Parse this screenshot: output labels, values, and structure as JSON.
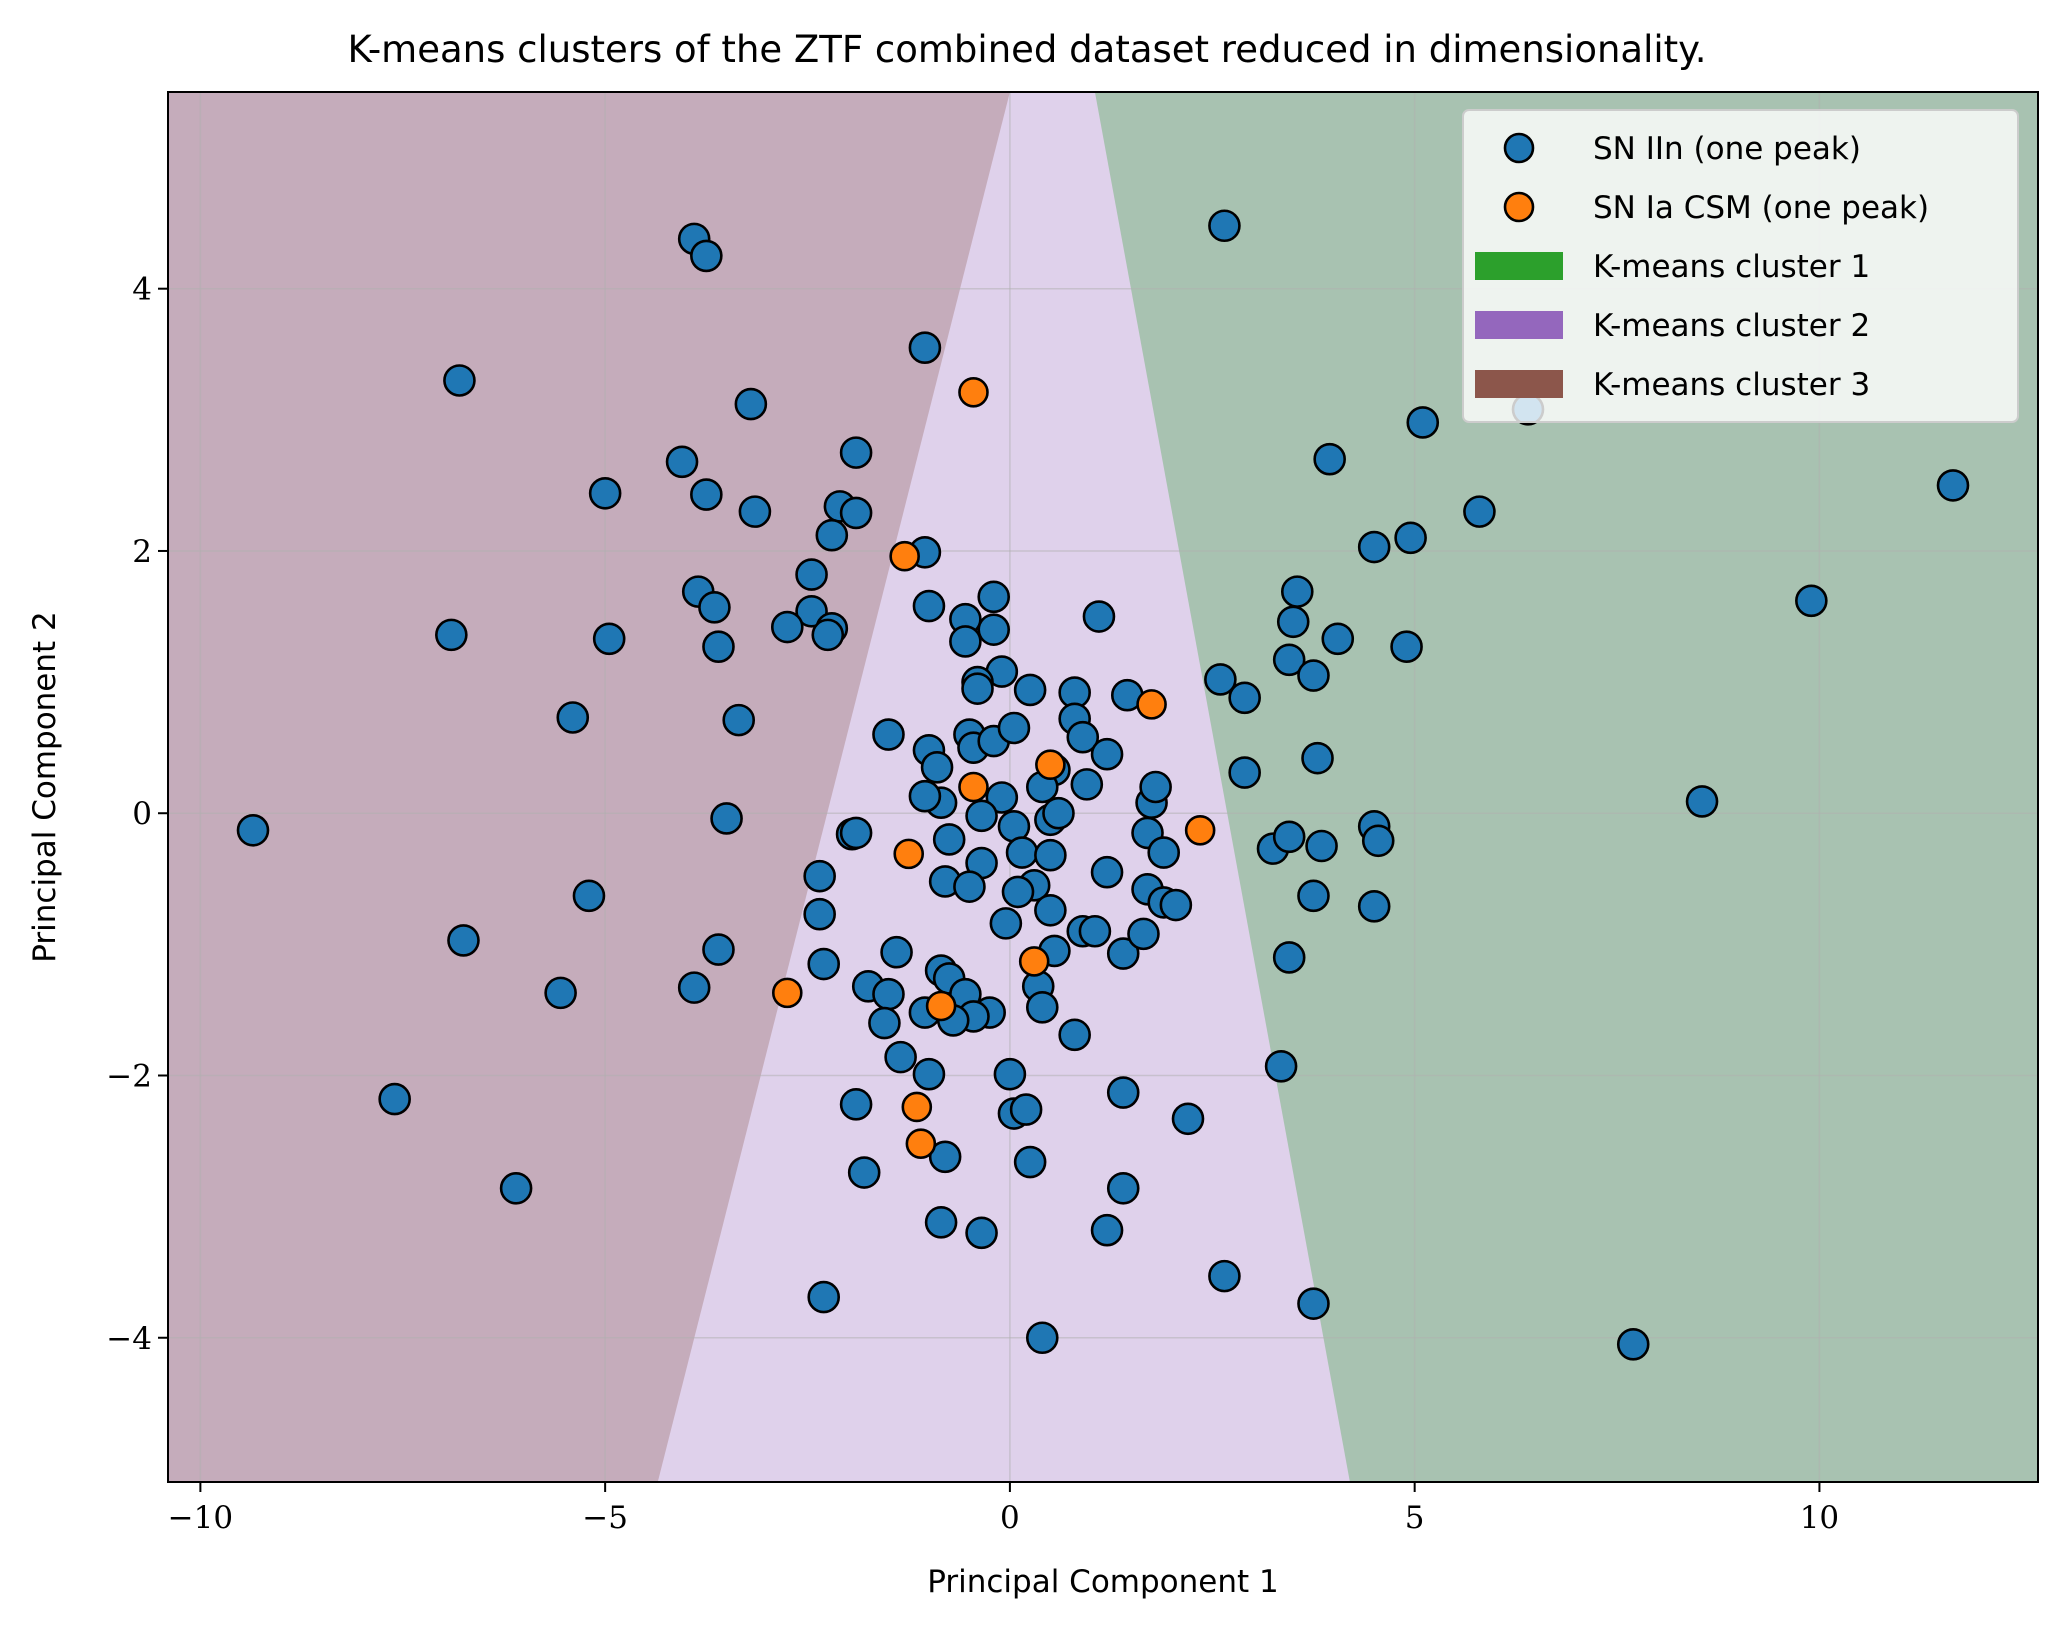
{
  "chart_data": {
    "type": "scatter",
    "title": "K-means clusters of the ZTF combined dataset reduced in dimensionality.",
    "xlabel": "Principal Component 1",
    "ylabel": "Principal Component 2",
    "xlim": [
      -10.4,
      12.7
    ],
    "ylim": [
      -5.1,
      5.5
    ],
    "xticks": [
      -10,
      -5,
      0,
      5,
      10
    ],
    "yticks": [
      -4,
      -2,
      0,
      2,
      4
    ],
    "xtick_labels": [
      "−10",
      "−5",
      "0",
      "5",
      "10"
    ],
    "ytick_labels": [
      "−4",
      "−2",
      "0",
      "2",
      "4"
    ],
    "grid": true,
    "legend_position": "top-right",
    "regions": [
      {
        "name": "K-means cluster 1",
        "color": "#2ca02c",
        "boundary": [
          [
            4.2,
            -5.1
          ],
          [
            1.05,
            5.5
          ]
        ],
        "side": "right"
      },
      {
        "name": "K-means cluster 2",
        "color": "#9467bd"
      },
      {
        "name": "K-means cluster 3",
        "color": "#8c564b",
        "boundary": [
          [
            -4.35,
            -5.1
          ],
          [
            0.0,
            5.5
          ]
        ],
        "side": "left"
      }
    ],
    "legend": [
      {
        "label": "SN IIn (one peak)",
        "kind": "marker",
        "color": "#1f77b4"
      },
      {
        "label": "SN Ia CSM (one peak)",
        "kind": "marker",
        "color": "#ff7f0e"
      },
      {
        "label": "K-means cluster 1",
        "kind": "patch",
        "color": "#2ca02c"
      },
      {
        "label": "K-means cluster 2",
        "kind": "patch",
        "color": "#9467bd"
      },
      {
        "label": "K-means cluster 3",
        "kind": "patch",
        "color": "#8c564b"
      }
    ],
    "series": [
      {
        "name": "SN IIn (one peak)",
        "color": "#1f77b4",
        "points": [
          [
            -3.9,
            4.38
          ],
          [
            -3.75,
            4.25
          ],
          [
            -6.8,
            3.3
          ],
          [
            -3.2,
            3.12
          ],
          [
            -4.05,
            2.68
          ],
          [
            -5.0,
            2.44
          ],
          [
            -3.75,
            2.43
          ],
          [
            -3.15,
            2.3
          ],
          [
            -1.9,
            2.75
          ],
          [
            -2.1,
            2.34
          ],
          [
            -1.9,
            2.29
          ],
          [
            -2.2,
            2.12
          ],
          [
            -2.45,
            1.82
          ],
          [
            -3.85,
            1.69
          ],
          [
            -3.65,
            1.57
          ],
          [
            -2.45,
            1.54
          ],
          [
            -2.75,
            1.42
          ],
          [
            -2.2,
            1.41
          ],
          [
            -2.25,
            1.36
          ],
          [
            -6.9,
            1.36
          ],
          [
            -4.95,
            1.33
          ],
          [
            -3.6,
            1.27
          ],
          [
            -5.4,
            0.73
          ],
          [
            -3.35,
            0.71
          ],
          [
            -9.35,
            -0.13
          ],
          [
            -3.5,
            -0.04
          ],
          [
            -1.95,
            -0.16
          ],
          [
            -1.9,
            -0.15
          ],
          [
            -2.35,
            -0.48
          ],
          [
            -5.2,
            -0.63
          ],
          [
            -6.75,
            -0.97
          ],
          [
            -3.6,
            -1.04
          ],
          [
            -2.35,
            -0.77
          ],
          [
            -2.3,
            -1.15
          ],
          [
            -3.9,
            -1.33
          ],
          [
            -5.55,
            -1.37
          ],
          [
            -7.6,
            -2.18
          ],
          [
            -6.1,
            -2.86
          ],
          [
            -1.9,
            -2.22
          ],
          [
            -1.8,
            -2.74
          ],
          [
            -2.3,
            -3.69
          ],
          [
            -1.05,
            3.55
          ],
          [
            -1.05,
            1.99
          ],
          [
            -1.0,
            1.58
          ],
          [
            -0.55,
            1.48
          ],
          [
            -0.2,
            1.65
          ],
          [
            -0.2,
            1.4
          ],
          [
            -0.55,
            1.31
          ],
          [
            -0.1,
            1.08
          ],
          [
            -0.4,
            1.0
          ],
          [
            -0.4,
            0.95
          ],
          [
            -1.5,
            0.6
          ],
          [
            -1.0,
            0.48
          ],
          [
            -0.5,
            0.6
          ],
          [
            -0.45,
            0.5
          ],
          [
            -0.2,
            0.55
          ],
          [
            0.05,
            0.65
          ],
          [
            -0.9,
            0.35
          ],
          [
            -0.1,
            0.12
          ],
          [
            0.05,
            -0.1
          ],
          [
            -0.85,
            0.08
          ],
          [
            -1.05,
            0.13
          ],
          [
            -0.35,
            -0.02
          ],
          [
            -0.75,
            -0.2
          ],
          [
            -0.35,
            -0.38
          ],
          [
            -0.8,
            -0.52
          ],
          [
            -0.5,
            -0.56
          ],
          [
            0.15,
            -0.3
          ],
          [
            0.3,
            -0.55
          ],
          [
            0.1,
            -0.6
          ],
          [
            -0.05,
            -0.84
          ],
          [
            0.5,
            -0.74
          ],
          [
            -1.4,
            -1.06
          ],
          [
            -1.75,
            -1.32
          ],
          [
            -1.5,
            -1.38
          ],
          [
            -1.05,
            -1.52
          ],
          [
            -0.85,
            -1.2
          ],
          [
            -0.75,
            -1.26
          ],
          [
            -0.55,
            -1.38
          ],
          [
            -0.25,
            -1.52
          ],
          [
            -0.45,
            -1.55
          ],
          [
            -0.7,
            -1.58
          ],
          [
            -1.55,
            -1.6
          ],
          [
            -1.35,
            -1.86
          ],
          [
            -1.0,
            -1.99
          ],
          [
            0.0,
            -1.99
          ],
          [
            0.05,
            -2.29
          ],
          [
            0.2,
            -2.26
          ],
          [
            -0.8,
            -2.62
          ],
          [
            0.25,
            -2.66
          ],
          [
            -0.85,
            -3.12
          ],
          [
            -0.35,
            -3.2
          ],
          [
            0.4,
            -4.0
          ],
          [
            0.55,
            -1.05
          ],
          [
            0.35,
            -1.32
          ],
          [
            0.4,
            -1.48
          ],
          [
            0.8,
            -1.69
          ],
          [
            0.25,
            0.94
          ],
          [
            0.8,
            0.92
          ],
          [
            0.8,
            0.72
          ],
          [
            0.9,
            0.58
          ],
          [
            1.2,
            0.45
          ],
          [
            0.55,
            0.33
          ],
          [
            0.4,
            0.2
          ],
          [
            0.95,
            0.22
          ],
          [
            0.5,
            -0.05
          ],
          [
            0.6,
            0.0
          ],
          [
            0.5,
            -0.32
          ],
          [
            1.2,
            -0.45
          ],
          [
            0.9,
            -0.9
          ],
          [
            1.05,
            -0.9
          ],
          [
            1.4,
            -1.07
          ],
          [
            1.4,
            -2.13
          ],
          [
            1.4,
            -2.86
          ],
          [
            1.2,
            -3.18
          ],
          [
            1.65,
            -0.92
          ],
          [
            1.7,
            -0.58
          ],
          [
            1.7,
            -0.15
          ],
          [
            1.9,
            -0.3
          ],
          [
            1.9,
            -0.68
          ],
          [
            2.05,
            -0.7
          ],
          [
            1.75,
            0.08
          ],
          [
            1.8,
            0.2
          ],
          [
            1.45,
            0.9
          ],
          [
            1.1,
            1.5
          ],
          [
            2.2,
            -2.33
          ],
          [
            2.6,
            1.02
          ],
          [
            2.9,
            0.88
          ],
          [
            2.9,
            0.31
          ],
          [
            2.65,
            4.48
          ],
          [
            3.25,
            -0.27
          ],
          [
            3.45,
            -0.18
          ],
          [
            3.45,
            -1.1
          ],
          [
            3.35,
            -1.93
          ],
          [
            3.45,
            1.17
          ],
          [
            3.5,
            1.46
          ],
          [
            3.55,
            1.69
          ],
          [
            3.75,
            1.05
          ],
          [
            3.8,
            0.42
          ],
          [
            3.75,
            -0.63
          ],
          [
            3.85,
            -0.25
          ],
          [
            4.05,
            1.33
          ],
          [
            3.95,
            2.7
          ],
          [
            4.5,
            2.03
          ],
          [
            4.5,
            -0.1
          ],
          [
            4.55,
            -0.21
          ],
          [
            4.5,
            -0.71
          ],
          [
            4.95,
            2.1
          ],
          [
            4.9,
            1.27
          ],
          [
            5.1,
            2.98
          ],
          [
            5.8,
            2.3
          ],
          [
            6.4,
            3.08
          ],
          [
            8.55,
            0.09
          ],
          [
            9.9,
            1.62
          ],
          [
            11.65,
            2.5
          ],
          [
            7.7,
            -4.05
          ],
          [
            2.65,
            -3.53
          ],
          [
            3.75,
            -3.74
          ]
        ]
      },
      {
        "name": "SN Ia CSM (one peak)",
        "color": "#ff7f0e",
        "points": [
          [
            -0.45,
            3.21
          ],
          [
            -1.3,
            1.96
          ],
          [
            1.75,
            0.83
          ],
          [
            0.5,
            0.37
          ],
          [
            -0.45,
            0.2
          ],
          [
            -1.25,
            -0.31
          ],
          [
            2.35,
            -0.13
          ],
          [
            0.3,
            -1.13
          ],
          [
            -2.75,
            -1.37
          ],
          [
            -0.85,
            -1.47
          ],
          [
            -1.15,
            -2.24
          ],
          [
            -1.1,
            -2.52
          ]
        ]
      }
    ]
  }
}
